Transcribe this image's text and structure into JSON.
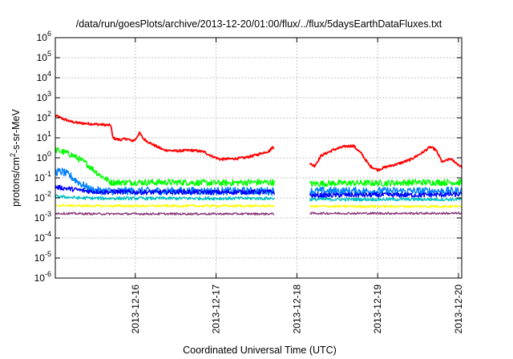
{
  "chart_data": {
    "type": "line",
    "title": "/data/run/goesPlots/archive/2013-12-20/01:00/flux/../flux/5daysEarthDataFluxes.txt",
    "xlabel": "Coordinated Universal Time (UTC)",
    "ylabel_base": "protons/cm",
    "ylabel_sup": "2",
    "ylabel_tail": "-s-sr-MeV",
    "y_scale": "log",
    "ylim": [
      1e-06,
      1000000.0
    ],
    "y_ticks": [
      {
        "base": "10",
        "exp": "-6",
        "value": 1e-06
      },
      {
        "base": "10",
        "exp": "-5",
        "value": 1e-05
      },
      {
        "base": "10",
        "exp": "-4",
        "value": 0.0001
      },
      {
        "base": "10",
        "exp": "-3",
        "value": 0.001
      },
      {
        "base": "10",
        "exp": "-2",
        "value": 0.01
      },
      {
        "base": "10",
        "exp": "-1",
        "value": 0.1
      },
      {
        "base": "10",
        "exp": "0",
        "value": 1
      },
      {
        "base": "10",
        "exp": "1",
        "value": 10
      },
      {
        "base": "10",
        "exp": "2",
        "value": 100
      },
      {
        "base": "10",
        "exp": "3",
        "value": 1000
      },
      {
        "base": "10",
        "exp": "4",
        "value": 10000
      },
      {
        "base": "10",
        "exp": "5",
        "value": 100000
      },
      {
        "base": "10",
        "exp": "6",
        "value": 1000000
      }
    ],
    "x_ticks": [
      {
        "label": "2013-12-16",
        "day": 16
      },
      {
        "label": "2013-12-17",
        "day": 17
      },
      {
        "label": "2013-12-18",
        "day": 18
      },
      {
        "label": "2013-12-19",
        "day": 19
      },
      {
        "label": "2013-12-20",
        "day": 20
      }
    ],
    "xlim_days": [
      15.01,
      20.04
    ],
    "grid": true,
    "data_gap_days": [
      17.72,
      18.16
    ],
    "series": [
      {
        "color": "#ff0000",
        "noise": 0.06,
        "points": [
          [
            15.01,
            130
          ],
          [
            15.1,
            90
          ],
          [
            15.2,
            65
          ],
          [
            15.3,
            55
          ],
          [
            15.45,
            50
          ],
          [
            15.6,
            45
          ],
          [
            15.7,
            42
          ],
          [
            15.72,
            10
          ],
          [
            15.8,
            8
          ],
          [
            15.9,
            9
          ],
          [
            15.95,
            7
          ],
          [
            16.0,
            8
          ],
          [
            16.05,
            18
          ],
          [
            16.1,
            9
          ],
          [
            16.2,
            5
          ],
          [
            16.35,
            2.5
          ],
          [
            16.5,
            2.2
          ],
          [
            16.7,
            2.4
          ],
          [
            16.85,
            2.0
          ],
          [
            16.95,
            1.2
          ],
          [
            17.05,
            0.85
          ],
          [
            17.2,
            0.9
          ],
          [
            17.35,
            1.0
          ],
          [
            17.5,
            1.4
          ],
          [
            17.62,
            2.0
          ],
          [
            17.66,
            2.2
          ],
          [
            17.7,
            3.5
          ],
          [
            18.16,
            0.5
          ],
          [
            18.22,
            0.4
          ],
          [
            18.3,
            1.3
          ],
          [
            18.45,
            2.5
          ],
          [
            18.6,
            3.8
          ],
          [
            18.7,
            4.0
          ],
          [
            18.8,
            1.6
          ],
          [
            18.9,
            0.4
          ],
          [
            19.0,
            0.25
          ],
          [
            19.1,
            0.35
          ],
          [
            19.25,
            0.5
          ],
          [
            19.4,
            0.8
          ],
          [
            19.55,
            1.8
          ],
          [
            19.65,
            3.5
          ],
          [
            19.72,
            2.5
          ],
          [
            19.8,
            0.6
          ],
          [
            19.9,
            0.9
          ],
          [
            20.04,
            0.35
          ]
        ]
      },
      {
        "color": "#00ff00",
        "noise": 0.16,
        "points": [
          [
            15.01,
            2.5
          ],
          [
            15.1,
            2.0
          ],
          [
            15.2,
            1.5
          ],
          [
            15.3,
            0.9
          ],
          [
            15.4,
            0.5
          ],
          [
            15.55,
            0.15
          ],
          [
            15.7,
            0.06
          ],
          [
            15.9,
            0.06
          ],
          [
            16.2,
            0.06
          ],
          [
            16.6,
            0.06
          ],
          [
            17.0,
            0.055
          ],
          [
            17.4,
            0.06
          ],
          [
            17.7,
            0.06
          ],
          [
            18.16,
            0.05
          ],
          [
            18.5,
            0.055
          ],
          [
            19.0,
            0.055
          ],
          [
            19.5,
            0.06
          ],
          [
            20.04,
            0.06
          ]
        ]
      },
      {
        "color": "#0080ff",
        "noise": 0.2,
        "points": [
          [
            15.01,
            0.2
          ],
          [
            15.1,
            0.2
          ],
          [
            15.2,
            0.12
          ],
          [
            15.3,
            0.06
          ],
          [
            15.45,
            0.025
          ],
          [
            15.6,
            0.022
          ],
          [
            15.8,
            0.022
          ],
          [
            16.2,
            0.022
          ],
          [
            16.8,
            0.022
          ],
          [
            17.4,
            0.022
          ],
          [
            17.7,
            0.022
          ],
          [
            18.16,
            0.022
          ],
          [
            18.6,
            0.022
          ],
          [
            19.0,
            0.022
          ],
          [
            19.5,
            0.022
          ],
          [
            20.04,
            0.022
          ]
        ]
      },
      {
        "color": "#0000ff",
        "noise": 0.12,
        "points": [
          [
            15.01,
            0.035
          ],
          [
            15.2,
            0.028
          ],
          [
            15.4,
            0.022
          ],
          [
            15.6,
            0.02
          ],
          [
            15.8,
            0.02
          ],
          [
            16.2,
            0.019
          ],
          [
            16.6,
            0.02
          ],
          [
            17.0,
            0.019
          ],
          [
            17.4,
            0.02
          ],
          [
            17.7,
            0.02
          ],
          [
            18.16,
            0.013
          ],
          [
            18.6,
            0.014
          ],
          [
            19.0,
            0.014
          ],
          [
            19.5,
            0.014
          ],
          [
            20.04,
            0.015
          ]
        ]
      },
      {
        "color": "#00c0c0",
        "noise": 0.08,
        "points": [
          [
            15.01,
            0.012
          ],
          [
            15.3,
            0.01
          ],
          [
            15.6,
            0.0095
          ],
          [
            16.0,
            0.0095
          ],
          [
            16.6,
            0.0095
          ],
          [
            17.2,
            0.0095
          ],
          [
            17.7,
            0.0095
          ],
          [
            18.16,
            0.0085
          ],
          [
            18.8,
            0.0085
          ],
          [
            19.4,
            0.0085
          ],
          [
            20.04,
            0.0085
          ]
        ]
      },
      {
        "color": "#ffff00",
        "noise": 0.06,
        "points": [
          [
            15.01,
            0.0042
          ],
          [
            15.5,
            0.004
          ],
          [
            16.0,
            0.004
          ],
          [
            16.6,
            0.004
          ],
          [
            17.2,
            0.004
          ],
          [
            17.7,
            0.004
          ],
          [
            18.16,
            0.0038
          ],
          [
            18.8,
            0.0038
          ],
          [
            19.4,
            0.0038
          ],
          [
            20.04,
            0.0038
          ]
        ]
      },
      {
        "color": "#8b3a7a",
        "noise": 0.05,
        "points": [
          [
            15.01,
            0.0017
          ],
          [
            15.5,
            0.0016
          ],
          [
            16.0,
            0.0016
          ],
          [
            16.6,
            0.0016
          ],
          [
            17.2,
            0.0016
          ],
          [
            17.7,
            0.0016
          ],
          [
            18.16,
            0.0017
          ],
          [
            18.8,
            0.0017
          ],
          [
            19.4,
            0.0017
          ],
          [
            20.04,
            0.0017
          ]
        ]
      }
    ]
  }
}
